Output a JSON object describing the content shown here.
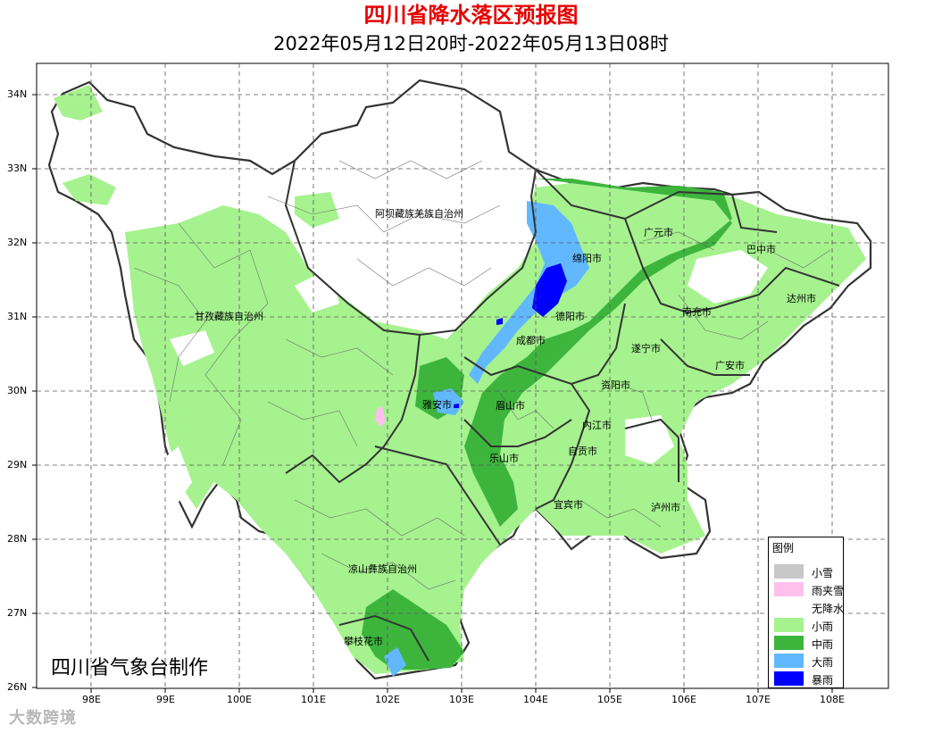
{
  "title": "四川省降水落区预报图",
  "subtitle": "2022年05月12日20时-2022年05月13日08时",
  "credit": "四川省气象台制作",
  "watermark": "大数跨境",
  "axes": {
    "lat_labels": [
      "34N",
      "33N",
      "32N",
      "31N",
      "30N",
      "29N",
      "28N",
      "27N",
      "26N"
    ],
    "lon_labels": [
      "98E",
      "99E",
      "100E",
      "101E",
      "102E",
      "103E",
      "104E",
      "105E",
      "106E",
      "107E",
      "108E"
    ],
    "grid": "dashed"
  },
  "legend": {
    "title": "图例",
    "placement": "bottom-right",
    "items": [
      {
        "label": "小雪",
        "color": "#c8c8c8"
      },
      {
        "label": "雨夹雪",
        "color": "#ffc0ee"
      },
      {
        "label": "无降水",
        "color": "#ffffff"
      },
      {
        "label": "小雨",
        "color": "#a6f28f"
      },
      {
        "label": "中雨",
        "color": "#3db53d"
      },
      {
        "label": "大雨",
        "color": "#61b8ff"
      },
      {
        "label": "暴雨",
        "color": "#0000fe"
      }
    ]
  },
  "regions": [
    "阿坝藏族羌族自治州",
    "甘孜藏族自治州",
    "凉山彝族自治州",
    "攀枝花市",
    "广元市",
    "巴中市",
    "绵阳市",
    "达州市",
    "德阳市",
    "南充市",
    "成都市",
    "遂宁市",
    "广安市",
    "雅安市",
    "眉山市",
    "资阳市",
    "内江市",
    "自贡市",
    "乐山市",
    "宜宾市",
    "泸州市"
  ]
}
